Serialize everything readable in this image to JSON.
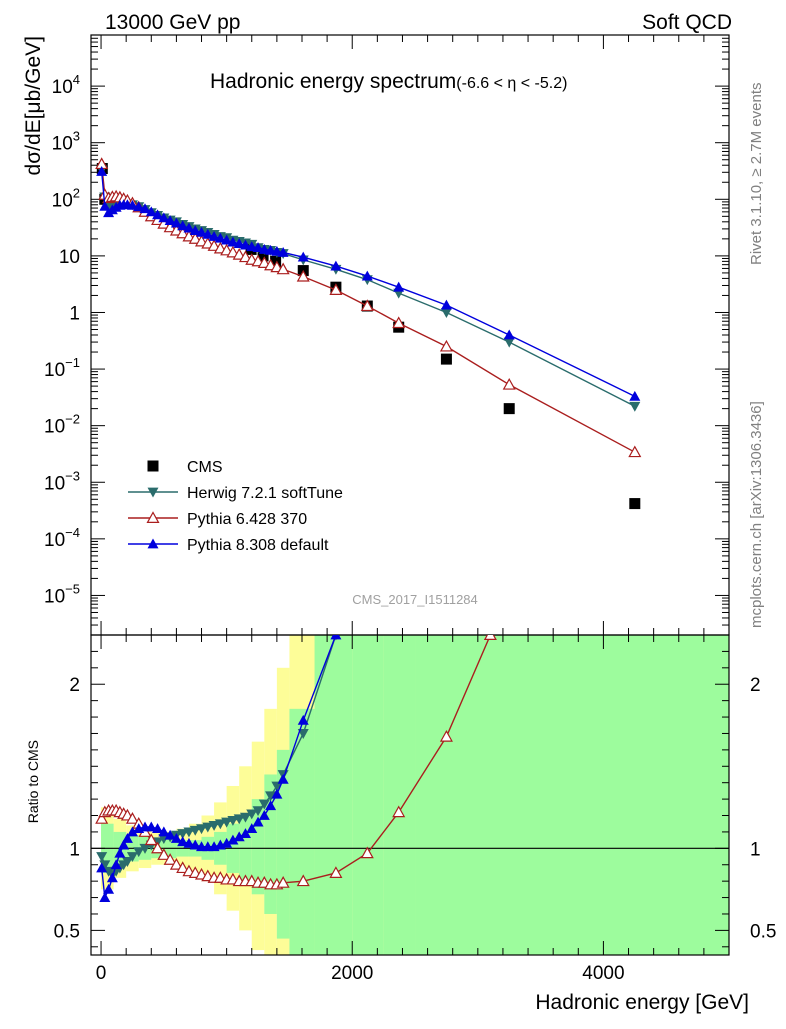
{
  "header": {
    "left": "13000 GeV pp",
    "right": "Soft QCD"
  },
  "side_text": {
    "rivet": "Rivet 3.1.10, ≥ 2.7M events",
    "mcplots": "mcplots.cern.ch [arXiv:1306.3436]"
  },
  "plot_title": {
    "main": "Hadronic energy spectrum",
    "range": "(-6.6 < η < -5.2)"
  },
  "watermark": "CMS_2017_I1511284",
  "colors": {
    "cms": "#000000",
    "herwig": "#2a6c6c",
    "pythia6": "#aa1e1e",
    "pythia8": "#0000dd",
    "band_inner": "#9dfc9d",
    "band_outer": "#fdfd98"
  },
  "chart_data": [
    {
      "type": "line",
      "panel": "main",
      "ylabel": "dσ/dE[μb/GeV]",
      "yscale": "log",
      "ylim": [
        2e-06,
        80000
      ],
      "xlim": [
        -80,
        5000
      ],
      "y_ticks": [
        {
          "v": 1e-05,
          "label": "10",
          "exp": "−5"
        },
        {
          "v": 0.0001,
          "label": "10",
          "exp": "−4"
        },
        {
          "v": 0.001,
          "label": "10",
          "exp": "−3"
        },
        {
          "v": 0.01,
          "label": "10",
          "exp": "−2"
        },
        {
          "v": 0.1,
          "label": "10",
          "exp": "−1"
        },
        {
          "v": 1,
          "label": "1",
          "exp": ""
        },
        {
          "v": 10,
          "label": "10",
          "exp": ""
        },
        {
          "v": 100,
          "label": "10",
          "exp": "2"
        },
        {
          "v": 1000,
          "label": "10",
          "exp": "3"
        },
        {
          "v": 10000,
          "label": "10",
          "exp": "4"
        }
      ],
      "legend": [
        "CMS",
        "Herwig 7.2.1 softTune",
        "Pythia 6.428 370",
        "Pythia 8.308 default"
      ],
      "series": [
        {
          "name": "CMS",
          "marker": "square",
          "x": [
            10,
            30,
            1195,
            1290,
            1390,
            1610,
            1870,
            2120,
            2370,
            2750,
            3250,
            4250
          ],
          "y": [
            350,
            100,
            13,
            10,
            8,
            5.5,
            2.8,
            1.3,
            0.55,
            0.15,
            0.02,
            0.00042
          ]
        },
        {
          "name": "Herwig 7.2.1 softTune",
          "marker": "triangle-down",
          "x": [
            5,
            30,
            60,
            90,
            120,
            150,
            180,
            210,
            250,
            300,
            350,
            400,
            450,
            500,
            550,
            600,
            650,
            700,
            750,
            800,
            850,
            900,
            950,
            1000,
            1050,
            1100,
            1150,
            1200,
            1250,
            1300,
            1350,
            1400,
            1450,
            1610,
            1870,
            2120,
            2370,
            2750,
            3250,
            4250
          ],
          "y": [
            330,
            110,
            75,
            78,
            82,
            85,
            85,
            83,
            80,
            74,
            66,
            58,
            52,
            47,
            43,
            40,
            36,
            33,
            30,
            28,
            26,
            24,
            22,
            21,
            19,
            18,
            17,
            16,
            14,
            13,
            12.5,
            11.5,
            11,
            8.5,
            5.8,
            3.8,
            2.2,
            1.0,
            0.3,
            0.022
          ]
        },
        {
          "name": "Pythia 6.428 370",
          "marker": "triangle-up-open",
          "x": [
            5,
            30,
            60,
            90,
            120,
            150,
            180,
            210,
            250,
            300,
            350,
            400,
            450,
            500,
            550,
            600,
            650,
            700,
            750,
            800,
            850,
            900,
            950,
            1000,
            1050,
            1100,
            1150,
            1200,
            1250,
            1300,
            1350,
            1400,
            1450,
            1610,
            1870,
            2120,
            2370,
            2750,
            3250,
            4250
          ],
          "y": [
            420,
            120,
            105,
            110,
            112,
            108,
            102,
            95,
            85,
            72,
            60,
            50,
            43,
            37,
            32,
            28,
            25,
            22,
            20,
            18,
            16.5,
            15,
            13.5,
            12.5,
            11.5,
            10.5,
            9.5,
            8.5,
            8,
            7.5,
            6.8,
            6.3,
            5.8,
            4.3,
            2.5,
            1.3,
            0.65,
            0.25,
            0.053,
            0.0034
          ]
        },
        {
          "name": "Pythia 8.308 default",
          "marker": "triangle-up",
          "x": [
            5,
            30,
            60,
            90,
            120,
            150,
            180,
            210,
            250,
            300,
            350,
            400,
            450,
            500,
            550,
            600,
            650,
            700,
            750,
            800,
            850,
            900,
            950,
            1000,
            1050,
            1100,
            1150,
            1200,
            1250,
            1300,
            1350,
            1400,
            1450,
            1610,
            1870,
            2120,
            2370,
            2750,
            3250,
            4250
          ],
          "y": [
            310,
            75,
            58,
            65,
            72,
            78,
            80,
            80,
            78,
            74,
            68,
            60,
            53,
            47,
            42,
            38,
            34,
            31,
            28,
            26,
            24,
            22,
            20.5,
            19,
            17.5,
            16.5,
            15.5,
            14.5,
            14,
            13,
            12.5,
            12,
            11.5,
            9.5,
            6.6,
            4.4,
            2.8,
            1.35,
            0.4,
            0.033
          ]
        }
      ]
    },
    {
      "type": "line",
      "panel": "ratio",
      "ylabel": "Ratio to CMS",
      "xlabel": "Hadronic energy [GeV]",
      "ylim": [
        0.35,
        2.3
      ],
      "xlim": [
        -80,
        5000
      ],
      "x_ticks": [
        0,
        2000,
        4000
      ],
      "y_ticks": [
        0.5,
        1,
        2
      ],
      "reference": 1,
      "series": [
        {
          "name": "Herwig 7.2.1 softTune",
          "x": [
            5,
            30,
            60,
            90,
            120,
            150,
            180,
            210,
            250,
            300,
            350,
            400,
            450,
            500,
            550,
            600,
            650,
            700,
            750,
            800,
            850,
            900,
            950,
            1000,
            1050,
            1100,
            1150,
            1200,
            1250,
            1300,
            1350,
            1400,
            1450,
            1610,
            1870
          ],
          "y": [
            0.95,
            0.9,
            0.86,
            0.84,
            0.86,
            0.88,
            0.9,
            0.92,
            0.95,
            0.98,
            1.0,
            1.02,
            1.04,
            1.06,
            1.07,
            1.08,
            1.09,
            1.1,
            1.11,
            1.12,
            1.13,
            1.14,
            1.15,
            1.16,
            1.17,
            1.18,
            1.19,
            1.21,
            1.23,
            1.27,
            1.32,
            1.38,
            1.45,
            1.7,
            2.3
          ]
        },
        {
          "name": "Pythia 6.428 370",
          "x": [
            5,
            30,
            60,
            90,
            120,
            150,
            180,
            210,
            250,
            300,
            350,
            400,
            450,
            500,
            550,
            600,
            650,
            700,
            750,
            800,
            850,
            900,
            950,
            1000,
            1050,
            1100,
            1150,
            1200,
            1250,
            1300,
            1350,
            1400,
            1450,
            1610,
            1870,
            2120,
            2370,
            2750,
            3100
          ],
          "y": [
            1.18,
            1.22,
            1.23,
            1.23,
            1.23,
            1.22,
            1.21,
            1.2,
            1.18,
            1.15,
            1.1,
            1.05,
            1.0,
            0.96,
            0.93,
            0.9,
            0.88,
            0.86,
            0.85,
            0.84,
            0.83,
            0.82,
            0.82,
            0.81,
            0.81,
            0.8,
            0.8,
            0.8,
            0.79,
            0.79,
            0.78,
            0.78,
            0.79,
            0.8,
            0.85,
            0.97,
            1.22,
            1.68,
            2.3
          ]
        },
        {
          "name": "Pythia 8.308 default",
          "x": [
            5,
            30,
            60,
            90,
            120,
            150,
            180,
            210,
            250,
            300,
            350,
            400,
            450,
            500,
            550,
            600,
            650,
            700,
            750,
            800,
            850,
            900,
            950,
            1000,
            1050,
            1100,
            1150,
            1200,
            1250,
            1300,
            1350,
            1400,
            1450,
            1610,
            1870
          ],
          "y": [
            0.88,
            0.7,
            0.75,
            0.82,
            0.9,
            0.97,
            1.02,
            1.06,
            1.1,
            1.12,
            1.13,
            1.13,
            1.12,
            1.1,
            1.08,
            1.06,
            1.04,
            1.03,
            1.02,
            1.01,
            1.01,
            1.01,
            1.02,
            1.03,
            1.05,
            1.07,
            1.09,
            1.12,
            1.16,
            1.2,
            1.26,
            1.33,
            1.42,
            1.78,
            2.3
          ]
        }
      ],
      "bands": {
        "edges": [
          0,
          100,
          200,
          300,
          400,
          500,
          600,
          700,
          800,
          900,
          1000,
          1100,
          1200,
          1300,
          1400,
          1500,
          1700,
          2000,
          2250,
          2500,
          5000
        ],
        "inner_lo": [
          0.85,
          0.9,
          0.92,
          0.93,
          0.94,
          0.94,
          0.95,
          0.95,
          0.93,
          0.9,
          0.85,
          0.8,
          0.72,
          0.6,
          0.45,
          0.35,
          0.35,
          0.35,
          0.35,
          0.35
        ],
        "inner_hi": [
          1.15,
          1.1,
          1.08,
          1.07,
          1.06,
          1.06,
          1.05,
          1.05,
          1.07,
          1.1,
          1.15,
          1.2,
          1.3,
          1.45,
          1.6,
          1.85,
          2.3,
          2.3,
          2.3,
          2.3
        ],
        "outer_lo": [
          0.75,
          0.82,
          0.86,
          0.88,
          0.9,
          0.9,
          0.88,
          0.85,
          0.8,
          0.72,
          0.62,
          0.5,
          0.38,
          0.35,
          0.35,
          0.35,
          0.35,
          0.35,
          0.35,
          0.35
        ],
        "outer_hi": [
          1.25,
          1.18,
          1.14,
          1.12,
          1.1,
          1.1,
          1.12,
          1.15,
          1.2,
          1.28,
          1.38,
          1.5,
          1.65,
          1.85,
          2.1,
          2.3,
          2.3,
          2.3,
          2.3,
          2.3
        ]
      }
    }
  ]
}
